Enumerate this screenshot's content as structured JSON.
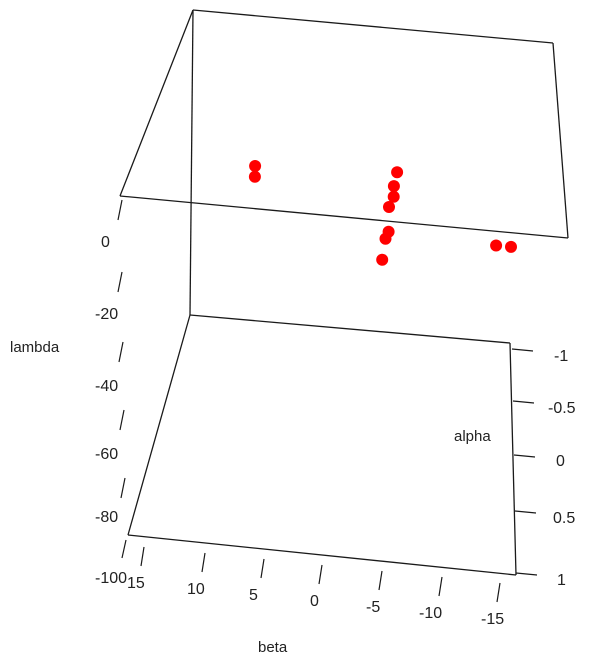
{
  "chart_data": {
    "type": "scatter3d",
    "point_color": "#ff0000",
    "x_axis": {
      "label": "beta",
      "ticks": [
        "15",
        "10",
        "5",
        "0",
        "-5",
        "-10",
        "-15"
      ]
    },
    "y_axis": {
      "label": "lambda",
      "ticks": [
        "0",
        "-20",
        "-40",
        "-60",
        "-80",
        "-100"
      ]
    },
    "z_axis": {
      "label": "alpha",
      "ticks": [
        "-1",
        "-0.5",
        "0",
        "0.5",
        "1"
      ]
    },
    "points": [
      {
        "beta": 6.0,
        "lambda": 12,
        "alpha": -1
      },
      {
        "beta": 6.0,
        "lambda": 9,
        "alpha": -1
      },
      {
        "beta": -3.5,
        "lambda": 14,
        "alpha": -1
      },
      {
        "beta": -3.3,
        "lambda": 10,
        "alpha": -1
      },
      {
        "beta": -3.3,
        "lambda": 7,
        "alpha": -1
      },
      {
        "beta": -3.0,
        "lambda": 4,
        "alpha": -1
      },
      {
        "beta": -3.0,
        "lambda": -3,
        "alpha": -1
      },
      {
        "beta": -2.8,
        "lambda": -5,
        "alpha": -1
      },
      {
        "beta": -2.6,
        "lambda": -11,
        "alpha": -1
      },
      {
        "beta": -10.2,
        "lambda": -4,
        "alpha": -1
      },
      {
        "beta": -11.2,
        "lambda": -4,
        "alpha": -1
      }
    ]
  }
}
